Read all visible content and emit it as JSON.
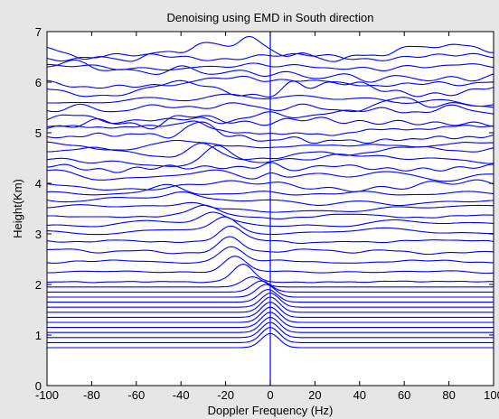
{
  "chart_data": {
    "type": "line",
    "title": "Denoising using EMD in South direction",
    "xlabel": "Doppler Frequency (Hz)",
    "ylabel": "Height(Km)",
    "xlim": [
      -100,
      100
    ],
    "ylim": [
      0,
      7
    ],
    "xticks": [
      "-100",
      "-80",
      "-60",
      "-40",
      "-20",
      "0",
      "20",
      "40",
      "60",
      "80",
      "100"
    ],
    "yticks": [
      "0",
      "1",
      "2",
      "3",
      "4",
      "5",
      "6",
      "7"
    ],
    "grid": false,
    "legend": "none",
    "vertical_marker_x": 0,
    "offset_heights_km": [
      0.75,
      0.85,
      0.95,
      1.05,
      1.15,
      1.25,
      1.35,
      1.45,
      1.55,
      1.65,
      1.75,
      1.85,
      1.95,
      2.05,
      2.25,
      2.45,
      2.65,
      2.85,
      3.05,
      3.2,
      3.35,
      3.5,
      3.65,
      3.8,
      3.95,
      4.15,
      4.3,
      4.45,
      4.6,
      4.75,
      4.9,
      5.05,
      5.2,
      5.35,
      5.5,
      5.65,
      5.85,
      6.0,
      6.15,
      6.3,
      6.5,
      6.6
    ],
    "peaks": [
      {
        "height": 0.75,
        "x": 0,
        "amp": 0.28
      },
      {
        "height": 0.85,
        "x": 0,
        "amp": 0.3
      },
      {
        "height": 0.95,
        "x": 0,
        "amp": 0.3
      },
      {
        "height": 1.05,
        "x": 0,
        "amp": 0.3
      },
      {
        "height": 1.15,
        "x": 0,
        "amp": 0.3
      },
      {
        "height": 1.25,
        "x": 0,
        "amp": 0.3
      },
      {
        "height": 1.35,
        "x": 0,
        "amp": 0.3
      },
      {
        "height": 1.45,
        "x": 0,
        "amp": 0.3
      },
      {
        "height": 1.55,
        "x": 0,
        "amp": 0.28
      },
      {
        "height": 1.65,
        "x": -1,
        "amp": 0.25
      },
      {
        "height": 1.75,
        "x": -2,
        "amp": 0.25
      },
      {
        "height": 1.85,
        "x": -4,
        "amp": 0.22
      },
      {
        "height": 1.95,
        "x": -8,
        "amp": 0.2
      },
      {
        "height": 2.05,
        "x": -12,
        "amp": 0.35
      },
      {
        "height": 2.25,
        "x": -16,
        "amp": 0.3
      },
      {
        "height": 2.45,
        "x": -18,
        "amp": 0.3
      },
      {
        "height": 2.65,
        "x": -18,
        "amp": 0.3
      },
      {
        "height": 2.85,
        "x": -18,
        "amp": 0.3
      },
      {
        "height": 3.05,
        "x": -20,
        "amp": 0.25
      },
      {
        "height": 3.2,
        "x": -26,
        "amp": 0.2
      },
      {
        "height": 3.35,
        "x": -30,
        "amp": 0.18
      },
      {
        "height": 3.5,
        "x": -34,
        "amp": 0.15
      },
      {
        "height": 3.65,
        "x": -40,
        "amp": 0.14
      },
      {
        "height": 3.8,
        "x": -45,
        "amp": 0.15
      },
      {
        "height": 4.15,
        "x": 0,
        "amp": 0.15
      },
      {
        "height": 4.3,
        "x": 0,
        "amp": 0.15
      },
      {
        "height": 4.45,
        "x": -24,
        "amp": 0.35
      },
      {
        "height": 4.6,
        "x": -30,
        "amp": 0.2
      },
      {
        "height": 4.9,
        "x": -30,
        "amp": 0.25
      },
      {
        "height": 5.05,
        "x": -35,
        "amp": 0.2
      },
      {
        "height": 5.2,
        "x": -40,
        "amp": 0.15
      },
      {
        "height": 5.5,
        "x": 60,
        "amp": 0.2
      },
      {
        "height": 5.85,
        "x": 10,
        "amp": 0.2
      },
      {
        "height": 6.15,
        "x": -95,
        "amp": 0.25
      },
      {
        "height": 6.6,
        "x": -10,
        "amp": 0.15
      }
    ],
    "series_color": "#0000ff",
    "background_color": "#ffffff",
    "figure_color": "#e6e6e6"
  }
}
